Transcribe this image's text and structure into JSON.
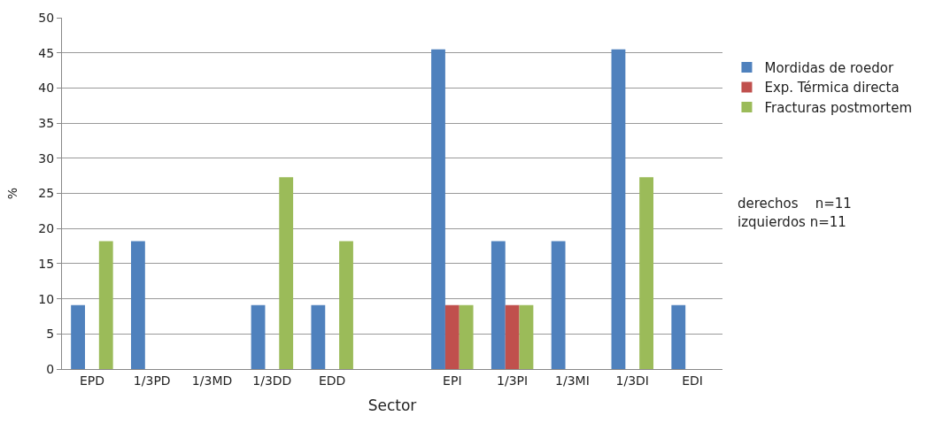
{
  "chart_data": {
    "type": "bar",
    "xlabel": "Sector",
    "ylabel": "%",
    "categories": [
      "EPD",
      "1/3PD",
      "1/3MD",
      "1/3DD",
      "EDD",
      null,
      "EPI",
      "1/3PI",
      "1/3MI",
      "1/3DI",
      "EDI"
    ],
    "series": [
      {
        "name": "Mordidas de roedor",
        "color": "#4f81bd",
        "values": [
          9.1,
          18.2,
          0,
          9.1,
          9.1,
          null,
          45.5,
          18.2,
          18.2,
          45.5,
          9.1
        ]
      },
      {
        "name": "Exp. Térmica directa",
        "color": "#c0504d",
        "values": [
          0,
          0,
          0,
          0,
          0,
          null,
          9.1,
          9.1,
          0,
          0,
          0
        ]
      },
      {
        "name": "Fracturas postmortem",
        "color": "#9bbb59",
        "values": [
          18.2,
          0,
          0,
          27.3,
          18.2,
          null,
          9.1,
          9.1,
          0,
          27.3,
          0
        ]
      }
    ],
    "ylim": [
      0,
      50
    ],
    "yticks": [
      0,
      5,
      10,
      15,
      20,
      25,
      30,
      35,
      40,
      45,
      50
    ],
    "grid": "y",
    "legend": "right",
    "annotations": [
      "derechos    n=11",
      "izquierdos n=11"
    ]
  }
}
